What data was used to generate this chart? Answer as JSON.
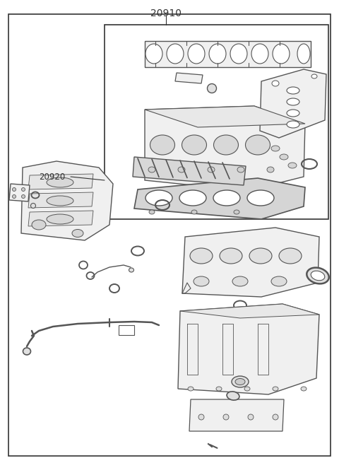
{
  "title": "20910",
  "label_20920": "20920",
  "bg_color": "#ffffff",
  "lc": "#555555",
  "lc_dark": "#333333",
  "fig_width": 4.8,
  "fig_height": 6.55,
  "dpi": 100
}
